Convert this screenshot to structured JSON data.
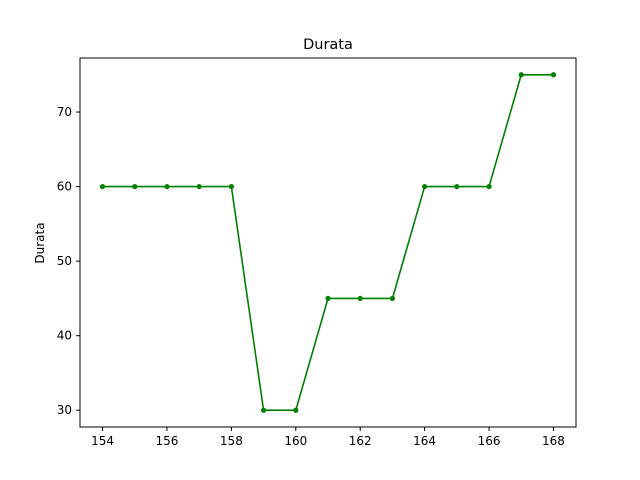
{
  "chart_data": {
    "type": "line",
    "title": "Durata",
    "xlabel": "",
    "ylabel": "Durata",
    "x": [
      154,
      155,
      156,
      157,
      158,
      159,
      160,
      161,
      162,
      163,
      164,
      165,
      166,
      167,
      168
    ],
    "series": [
      {
        "values": [
          60,
          60,
          60,
          60,
          60,
          30,
          30,
          45,
          45,
          45,
          60,
          60,
          60,
          75,
          75
        ],
        "color": "#008000",
        "marker": "dot"
      }
    ],
    "xlim": [
      153.3,
      168.7
    ],
    "ylim": [
      27.75,
      77.25
    ],
    "xticks": [
      154,
      156,
      158,
      160,
      162,
      164,
      166,
      168
    ],
    "yticks": [
      30,
      40,
      50,
      60,
      70
    ],
    "grid": false,
    "legend": "none"
  }
}
